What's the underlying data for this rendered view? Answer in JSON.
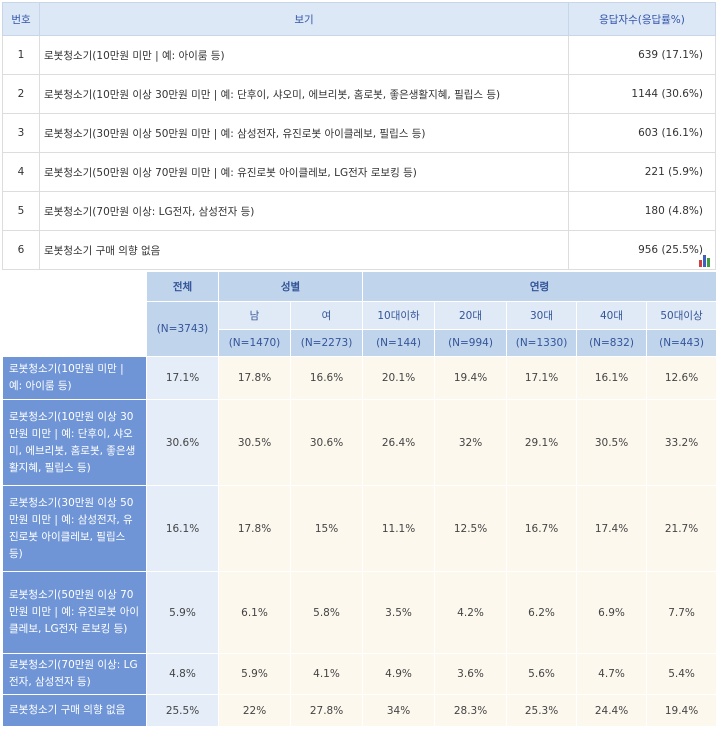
{
  "top": {
    "headers": {
      "no": "번호",
      "option": "보기",
      "count": "응답자수(응답률%)"
    },
    "rows": [
      {
        "no": "1",
        "option": "로봇청소기(10만원 미만 | 예: 아이룸 등)",
        "count": "639 (17.1%)"
      },
      {
        "no": "2",
        "option": "로봇청소기(10만원 이상 30만원 미만 | 예: 단후이, 샤오미, 에브리봇, 홈로봇, 좋은생활지혜, 필립스 등)",
        "count": "1144 (30.6%)"
      },
      {
        "no": "3",
        "option": "로봇청소기(30만원 이상 50만원 미만 | 예: 삼성전자, 유진로봇 아이클레보, 필립스 등)",
        "count": "603 (16.1%)"
      },
      {
        "no": "4",
        "option": "로봇청소기(50만원 이상 70만원 미만 | 예: 유진로봇 아이클레보, LG전자 로보킹 등)",
        "count": "221 (5.9%)"
      },
      {
        "no": "5",
        "option": "로봇청소기(70만원 이상: LG전자, 삼성전자 등)",
        "count": "180 (4.8%)"
      },
      {
        "no": "6",
        "option": "로봇청소기 구매 의향 없음",
        "count": "956 (25.5%)"
      }
    ]
  },
  "cross": {
    "total_label": "전체",
    "total_n": "(N=3743)",
    "gender_label": "성별",
    "age_label": "연령",
    "columns": [
      {
        "label": "남",
        "n": "(N=1470)"
      },
      {
        "label": "여",
        "n": "(N=2273)"
      },
      {
        "label": "10대이하",
        "n": "(N=144)"
      },
      {
        "label": "20대",
        "n": "(N=994)"
      },
      {
        "label": "30대",
        "n": "(N=1330)"
      },
      {
        "label": "40대",
        "n": "(N=832)"
      },
      {
        "label": "50대이상",
        "n": "(N=443)"
      }
    ],
    "rows": [
      {
        "label": "로봇청소기(10만원 미만 | 예: 아이룸 등)",
        "total": "17.1%",
        "values": [
          "17.8%",
          "16.6%",
          "20.1%",
          "19.4%",
          "17.1%",
          "16.1%",
          "12.6%"
        ]
      },
      {
        "label": "로봇청소기(10만원 이상 30만원 미만 | 예: 단후이, 샤오미, 에브리봇, 홈로봇, 좋은생활지혜, 필립스 등)",
        "total": "30.6%",
        "values": [
          "30.5%",
          "30.6%",
          "26.4%",
          "32%",
          "29.1%",
          "30.5%",
          "33.2%"
        ]
      },
      {
        "label": "로봇청소기(30만원 이상 50만원 미만 | 예: 삼성전자, 유진로봇 아이클레보, 필립스 등)",
        "total": "16.1%",
        "values": [
          "17.8%",
          "15%",
          "11.1%",
          "12.5%",
          "16.7%",
          "17.4%",
          "21.7%"
        ]
      },
      {
        "label": "로봇청소기(50만원 이상 70만원 미만 | 예: 유진로봇 아이클레보, LG전자 로보킹 등)",
        "total": "5.9%",
        "values": [
          "6.1%",
          "5.8%",
          "3.5%",
          "4.2%",
          "6.2%",
          "6.9%",
          "7.7%"
        ]
      },
      {
        "label": "로봇청소기(70만원 이상: LG전자, 삼성전자 등)",
        "total": "4.8%",
        "values": [
          "5.9%",
          "4.1%",
          "4.9%",
          "3.6%",
          "5.6%",
          "4.7%",
          "5.4%"
        ]
      },
      {
        "label": "로봇청소기 구매 의향 없음",
        "total": "25.5%",
        "values": [
          "22%",
          "27.8%",
          "34%",
          "28.3%",
          "25.3%",
          "24.4%",
          "19.4%"
        ]
      }
    ]
  },
  "icons": {
    "chart": "bar-chart-icon"
  },
  "colors": {
    "header_blue": "#c0d4ec",
    "row_label_blue": "#6f95d6",
    "cell_cream": "#fcf8ee"
  }
}
